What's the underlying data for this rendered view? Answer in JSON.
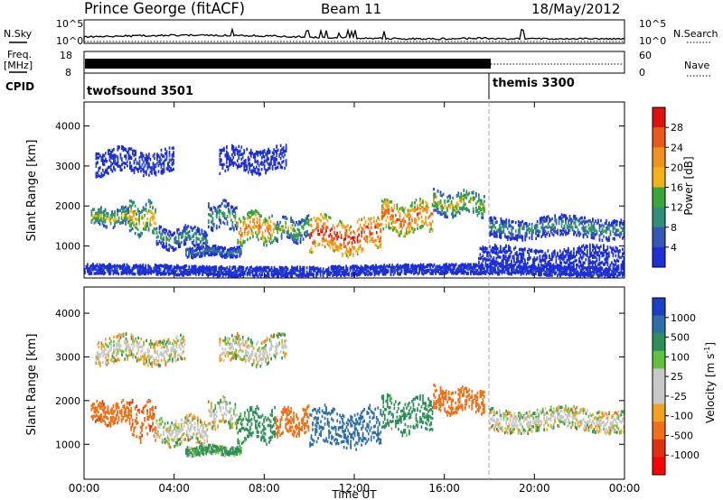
{
  "header": {
    "station": "Prince George (fitACF)",
    "beam": "Beam 11",
    "date": "18/May/2012"
  },
  "side_labels": {
    "nsky": "N.Sky",
    "nsearch": "N.Search",
    "freq_line1": "Freq.",
    "freq_line2": "[MHz]",
    "nave": "Nave",
    "cpid": "CPID"
  },
  "noise_panel": {
    "left_ticks": [
      "10^5",
      "10^0"
    ],
    "right_ticks": [
      "10^5",
      "10^0"
    ]
  },
  "freq_panel": {
    "left_ticks": [
      "18",
      "8"
    ],
    "right_ticks": [
      "60",
      "0"
    ]
  },
  "cpid_panel": {
    "modes": [
      {
        "label": "twofsound 3501",
        "start_hour": 0,
        "end_hour": 18
      },
      {
        "label": "themis 3300",
        "start_hour": 18,
        "end_hour": 24
      }
    ]
  },
  "colors": {
    "power_scale": [
      "#1c2fd8",
      "#3558b4",
      "#2f8f78",
      "#3aa53a",
      "#f2b316",
      "#f09020",
      "#e85a18",
      "#e01010"
    ],
    "velocity_scale": [
      "#1c3fc8",
      "#2f6fa8",
      "#2f8f58",
      "#60c040",
      "#c8c8c8",
      "#c8c8c8",
      "#f5a020",
      "#f07018",
      "#e03010",
      "#ff0000"
    ]
  },
  "chart_data": [
    {
      "type": "heatmap",
      "name": "power-panel",
      "ylabel": "Slant Range [km]",
      "y_ticks": [
        1000,
        2000,
        3000,
        4000
      ],
      "ylim": [
        200,
        4600
      ],
      "x_ticks": [
        "00:00",
        "04:00",
        "08:00",
        "12:00",
        "16:00",
        "20:00",
        "00:00"
      ],
      "xlim_hours": [
        0,
        24
      ],
      "colorbar": {
        "label": "Power [dB]",
        "ticks": [
          "28",
          "24",
          "20",
          "16",
          "12",
          "8",
          "4"
        ]
      },
      "bands": [
        {
          "t0": 0.3,
          "t1": 2.0,
          "r": 1700,
          "w": 220,
          "level": 0.55
        },
        {
          "t0": 2.0,
          "t1": 3.2,
          "r": 1650,
          "w": 380,
          "level": 0.65
        },
        {
          "t0": 3.2,
          "t1": 5.5,
          "r": 1200,
          "w": 250,
          "level": 0.35
        },
        {
          "t0": 5.5,
          "t1": 6.8,
          "r": 1750,
          "w": 300,
          "level": 0.45
        },
        {
          "t0": 6.8,
          "t1": 8.5,
          "r": 1450,
          "w": 350,
          "level": 0.8
        },
        {
          "t0": 8.5,
          "t1": 10.0,
          "r": 1400,
          "w": 280,
          "level": 0.5
        },
        {
          "t0": 10.0,
          "t1": 13.2,
          "r": 1250,
          "w": 420,
          "level": 0.95
        },
        {
          "t0": 13.2,
          "t1": 15.5,
          "r": 1700,
          "w": 380,
          "level": 0.85
        },
        {
          "t0": 15.5,
          "t1": 17.8,
          "r": 2050,
          "w": 280,
          "level": 0.6
        },
        {
          "t0": 18.0,
          "t1": 24.0,
          "r": 1450,
          "w": 250,
          "level": 0.35
        },
        {
          "t0": 4.5,
          "t1": 7.0,
          "r": 850,
          "w": 120,
          "level": 0.3
        },
        {
          "t0": 0.5,
          "t1": 4.0,
          "r": 3100,
          "w": 300,
          "level": 0.1
        },
        {
          "t0": 6.0,
          "t1": 9.0,
          "r": 3150,
          "w": 300,
          "level": 0.1
        },
        {
          "t0": 17.5,
          "t1": 24.0,
          "r": 700,
          "w": 250,
          "level": 0.05
        },
        {
          "t0": 0.0,
          "t1": 24.0,
          "r": 380,
          "w": 120,
          "level": 0.08
        }
      ]
    },
    {
      "type": "heatmap",
      "name": "velocity-panel",
      "ylabel": "Slant Range [km]",
      "y_ticks": [
        1000,
        2000,
        3000,
        4000
      ],
      "ylim": [
        200,
        4600
      ],
      "x_ticks": [
        "00:00",
        "04:00",
        "08:00",
        "12:00",
        "16:00",
        "20:00",
        "00:00"
      ],
      "xlim_hours": [
        0,
        24
      ],
      "xlabel": "Time UT",
      "colorbar": {
        "label": "Velocity [m s",
        "label_exponent": "-1",
        "label_suffix": "]",
        "ticks": [
          "1000",
          "500",
          "100",
          "25",
          "-25",
          "-100",
          "-500",
          "-1000"
        ]
      },
      "bands": [
        {
          "t0": 0.3,
          "t1": 2.0,
          "r": 1700,
          "w": 250,
          "vel": -400
        },
        {
          "t0": 2.0,
          "t1": 3.2,
          "r": 1500,
          "w": 400,
          "vel": -450
        },
        {
          "t0": 3.2,
          "t1": 5.5,
          "r": 1300,
          "w": 300,
          "vel": 0
        },
        {
          "t0": 5.5,
          "t1": 6.8,
          "r": 1700,
          "w": 300,
          "vel": 0
        },
        {
          "t0": 6.8,
          "t1": 8.5,
          "r": 1450,
          "w": 350,
          "vel": 150
        },
        {
          "t0": 8.5,
          "t1": 10.0,
          "r": 1500,
          "w": 300,
          "vel": -300
        },
        {
          "t0": 10.0,
          "t1": 13.2,
          "r": 1350,
          "w": 420,
          "vel": 450
        },
        {
          "t0": 13.2,
          "t1": 15.5,
          "r": 1650,
          "w": 380,
          "vel": 180
        },
        {
          "t0": 15.5,
          "t1": 17.8,
          "r": 2000,
          "w": 280,
          "vel": -350
        },
        {
          "t0": 18.0,
          "t1": 24.0,
          "r": 1550,
          "w": 250,
          "vel": 0
        },
        {
          "t0": 4.5,
          "t1": 7.0,
          "r": 850,
          "w": 100,
          "vel": 80
        },
        {
          "t0": 0.5,
          "t1": 4.5,
          "r": 3150,
          "w": 300,
          "vel": 0
        },
        {
          "t0": 6.0,
          "t1": 9.0,
          "r": 3150,
          "w": 300,
          "vel": 0
        }
      ]
    }
  ]
}
